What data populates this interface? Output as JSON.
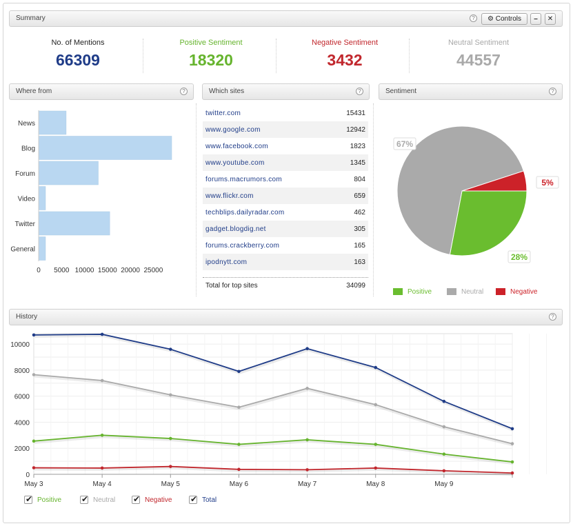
{
  "summary": {
    "title": "Summary",
    "controls_label": "Controls",
    "stats": [
      {
        "label": "No. of Mentions",
        "value": "66309",
        "color": "#1f3c88"
      },
      {
        "label": "Positive Sentiment",
        "value": "18320",
        "color": "#66b42e"
      },
      {
        "label": "Negative Sentiment",
        "value": "3432",
        "color": "#c1272d"
      },
      {
        "label": "Neutral Sentiment",
        "value": "44557",
        "color": "#a9a9a9"
      }
    ]
  },
  "where_from": {
    "title": "Where from",
    "chart_data": {
      "type": "bar",
      "orientation": "horizontal",
      "categories": [
        "News",
        "Blog",
        "Forum",
        "Video",
        "Twitter",
        "General"
      ],
      "values": [
        6000,
        29000,
        13000,
        1500,
        15500,
        1500
      ],
      "xticks": [
        "0",
        "5000",
        "10000",
        "15000",
        "20000",
        "25000"
      ],
      "xlim": [
        0,
        29000
      ],
      "bar_color": "#b9d7f1"
    }
  },
  "which_sites": {
    "title": "Which sites",
    "rows": [
      {
        "site": "twitter.com",
        "count": "15431"
      },
      {
        "site": "www.google.com",
        "count": "12942"
      },
      {
        "site": "www.facebook.com",
        "count": "1823"
      },
      {
        "site": "www.youtube.com",
        "count": "1345"
      },
      {
        "site": "forums.macrumors.com",
        "count": "804"
      },
      {
        "site": "www.flickr.com",
        "count": "659"
      },
      {
        "site": "techblips.dailyradar.com",
        "count": "462"
      },
      {
        "site": "gadget.blogdig.net",
        "count": "305"
      },
      {
        "site": "forums.crackberry.com",
        "count": "165"
      },
      {
        "site": "ipodnytt.com",
        "count": "163"
      }
    ],
    "total_label": "Total for top sites",
    "total_value": "34099"
  },
  "sentiment": {
    "title": "Sentiment",
    "chart_data": {
      "type": "pie",
      "slices": [
        {
          "name": "Positive",
          "value": 28,
          "label": "28%",
          "color": "#6abd2f"
        },
        {
          "name": "Neutral",
          "value": 67,
          "label": "67%",
          "color": "#aaaaaa"
        },
        {
          "name": "Negative",
          "value": 5,
          "label": "5%",
          "color": "#cc2229"
        }
      ]
    },
    "legend": [
      {
        "label": "Positive",
        "color": "#6abd2f"
      },
      {
        "label": "Neutral",
        "color": "#aaaaaa"
      },
      {
        "label": "Negative",
        "color": "#cc2229"
      }
    ]
  },
  "history": {
    "title": "History",
    "chart_data": {
      "type": "line",
      "x": [
        "May 3",
        "May 4",
        "May 5",
        "May 6",
        "May 7",
        "May 8",
        "May 9",
        ""
      ],
      "yticks": [
        "0",
        "2000",
        "4000",
        "6000",
        "8000",
        "10000"
      ],
      "ylim": [
        0,
        10800
      ],
      "grid": true,
      "series": [
        {
          "name": "Positive",
          "color": "#66b42e",
          "values": [
            2550,
            3000,
            2750,
            2300,
            2650,
            2300,
            1550,
            950
          ]
        },
        {
          "name": "Neutral",
          "color": "#a9a9a9",
          "values": [
            7650,
            7200,
            6100,
            5150,
            6600,
            5350,
            3650,
            2350
          ]
        },
        {
          "name": "Negative",
          "color": "#c1272d",
          "values": [
            500,
            480,
            600,
            380,
            350,
            480,
            270,
            100
          ]
        },
        {
          "name": "Total",
          "color": "#1f3c88",
          "values": [
            10700,
            10750,
            9600,
            7900,
            9650,
            8200,
            5600,
            3500
          ]
        }
      ]
    },
    "legend": [
      {
        "label": "Positive",
        "color": "#66b42e"
      },
      {
        "label": "Neutral",
        "color": "#a9a9a9"
      },
      {
        "label": "Negative",
        "color": "#c1272d"
      },
      {
        "label": "Total",
        "color": "#1f3c88"
      }
    ]
  }
}
